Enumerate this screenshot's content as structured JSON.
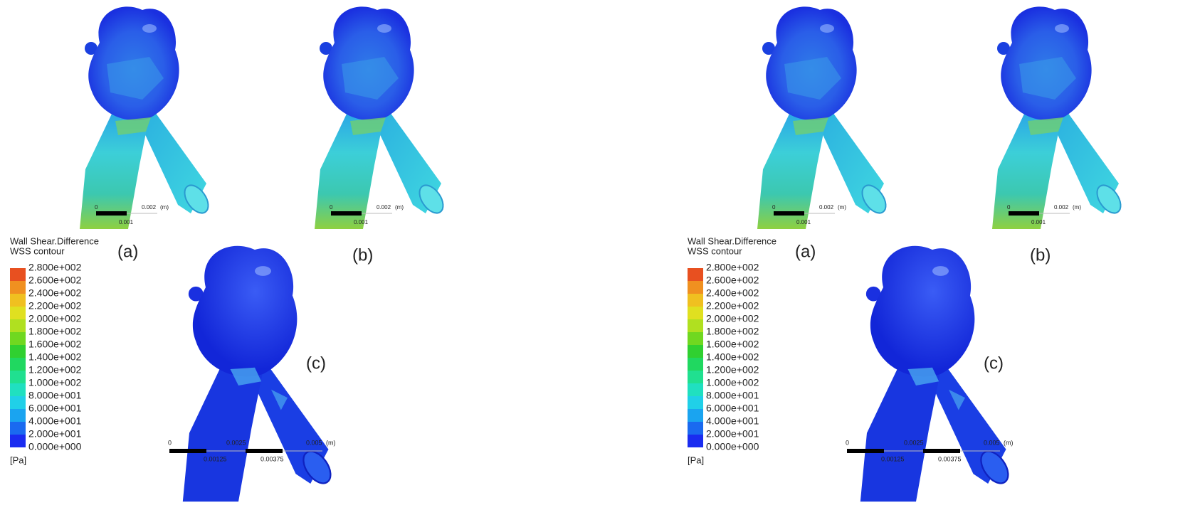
{
  "panels": [
    {
      "legend": {
        "title": "Wall Shear.Difference",
        "subtitle": "WSS contour",
        "ticks": [
          "2.800e+002",
          "2.600e+002",
          "2.400e+002",
          "2.200e+002",
          "2.000e+002",
          "1.800e+002",
          "1.600e+002",
          "1.400e+002",
          "1.200e+002",
          "1.000e+002",
          "8.000e+001",
          "6.000e+001",
          "4.000e+001",
          "2.000e+001",
          "0.000e+000"
        ],
        "unit": "[Pa]"
      },
      "views": [
        {
          "label": "(a)",
          "scale": [
            "0",
            "0.002",
            "(m)",
            "0.001"
          ]
        },
        {
          "label": "(b)",
          "scale": [
            "0",
            "0.002",
            "(m)",
            "0.001"
          ]
        },
        {
          "label": "(c)",
          "scale": [
            "0",
            "0.0025",
            "0.005",
            "(m)",
            "0.00125",
            "0.00375"
          ]
        }
      ]
    },
    {
      "legend": {
        "title": "Wall Shear.Difference",
        "subtitle": "WSS contour",
        "ticks": [
          "2.800e+002",
          "2.600e+002",
          "2.400e+002",
          "2.200e+002",
          "2.000e+002",
          "1.800e+002",
          "1.600e+002",
          "1.400e+002",
          "1.200e+002",
          "1.000e+002",
          "8.000e+001",
          "6.000e+001",
          "4.000e+001",
          "2.000e+001",
          "0.000e+000"
        ],
        "unit": "[Pa]"
      },
      "views": [
        {
          "label": "(a)",
          "scale": [
            "0",
            "0.002",
            "(m)",
            "0.001"
          ]
        },
        {
          "label": "(b)",
          "scale": [
            "0",
            "0.002",
            "(m)",
            "0.001"
          ]
        },
        {
          "label": "(c)",
          "scale": [
            "0",
            "0.0025",
            "0.005",
            "(m)",
            "0.00125",
            "0.00375"
          ]
        }
      ]
    }
  ]
}
